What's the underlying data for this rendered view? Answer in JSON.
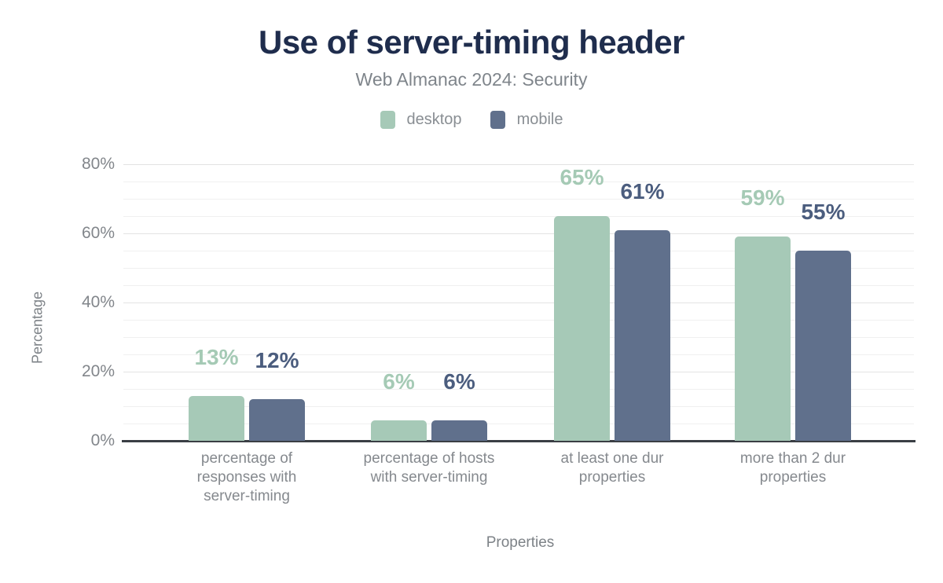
{
  "chart": {
    "title": "Use of server-timing header",
    "subtitle": "Web Almanac 2024: Security",
    "x_axis_title": "Properties",
    "y_axis_title": "Percentage"
  },
  "colors": {
    "desktop_bar": "#a6c9b7",
    "mobile_bar": "#60708c",
    "desktop_value_label": "#a5cab5",
    "mobile_value_label": "#4b5d7e",
    "title_text": "#1f2d4d",
    "muted_text": "#85898e",
    "axis_line": "#3a3e44"
  },
  "chart_data": {
    "type": "bar",
    "title": "Use of server-timing header",
    "subtitle": "Web Almanac 2024: Security",
    "xlabel": "Properties",
    "ylabel": "Percentage",
    "categories": [
      "percentage of responses with server-timing",
      "percentage of hosts with server-timing",
      "at least one dur properties",
      "more than 2 dur properties"
    ],
    "series": [
      {
        "name": "desktop",
        "color": "#a6c9b7",
        "label_color": "#a5cab5",
        "values": [
          13,
          6,
          65,
          59
        ],
        "labels": [
          "13%",
          "6%",
          "65%",
          "59%"
        ]
      },
      {
        "name": "mobile",
        "color": "#60708c",
        "label_color": "#4b5d7e",
        "values": [
          12,
          6,
          61,
          55
        ],
        "labels": [
          "12%",
          "6%",
          "61%",
          "55%"
        ]
      }
    ],
    "ylim": [
      0,
      80
    ],
    "ytick_labels": [
      "0%",
      "20%",
      "40%",
      "60%",
      "80%"
    ],
    "ytick_values": [
      0,
      20,
      40,
      60,
      80
    ],
    "grid": "horizontal minor lines every 5%, major every 20%",
    "legend_position": "top-center"
  }
}
